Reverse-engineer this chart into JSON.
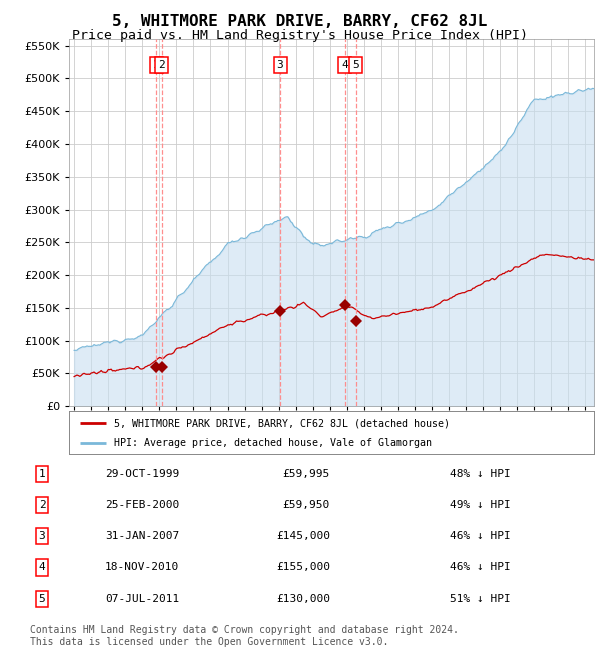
{
  "title": "5, WHITMORE PARK DRIVE, BARRY, CF62 8JL",
  "subtitle": "Price paid vs. HM Land Registry's House Price Index (HPI)",
  "title_fontsize": 11.5,
  "subtitle_fontsize": 9.5,
  "plot_bg_color": "#ffffff",
  "fig_bg_color": "#ffffff",
  "hpi_line_color": "#7ab8d9",
  "hpi_fill_color": "#c8dff0",
  "price_line_color": "#cc0000",
  "marker_color": "#990000",
  "dashed_line_color": "#ff8888",
  "grid_color": "#cccccc",
  "ylim": [
    0,
    560000
  ],
  "yticks": [
    0,
    50000,
    100000,
    150000,
    200000,
    250000,
    300000,
    350000,
    400000,
    450000,
    500000,
    550000
  ],
  "xlim_start": 1994.7,
  "xlim_end": 2025.5,
  "transactions": [
    {
      "num": 1,
      "date_str": "29-OCT-1999",
      "year": 1999.82,
      "price": 59995,
      "label": "1"
    },
    {
      "num": 2,
      "date_str": "25-FEB-2000",
      "year": 2000.14,
      "price": 59950,
      "label": "2"
    },
    {
      "num": 3,
      "date_str": "31-JAN-2007",
      "year": 2007.08,
      "price": 145000,
      "label": "3"
    },
    {
      "num": 4,
      "date_str": "18-NOV-2010",
      "year": 2010.88,
      "price": 155000,
      "label": "4"
    },
    {
      "num": 5,
      "date_str": "07-JUL-2011",
      "year": 2011.51,
      "price": 130000,
      "label": "5"
    }
  ],
  "legend_label_price": "5, WHITMORE PARK DRIVE, BARRY, CF62 8JL (detached house)",
  "legend_label_hpi": "HPI: Average price, detached house, Vale of Glamorgan",
  "table_rows": [
    [
      "1",
      "29-OCT-1999",
      "£59,995",
      "48% ↓ HPI"
    ],
    [
      "2",
      "25-FEB-2000",
      "£59,950",
      "49% ↓ HPI"
    ],
    [
      "3",
      "31-JAN-2007",
      "£145,000",
      "46% ↓ HPI"
    ],
    [
      "4",
      "18-NOV-2010",
      "£155,000",
      "46% ↓ HPI"
    ],
    [
      "5",
      "07-JUL-2011",
      "£130,000",
      "51% ↓ HPI"
    ]
  ],
  "footer": "Contains HM Land Registry data © Crown copyright and database right 2024.\nThis data is licensed under the Open Government Licence v3.0.",
  "footer_fontsize": 7.0
}
